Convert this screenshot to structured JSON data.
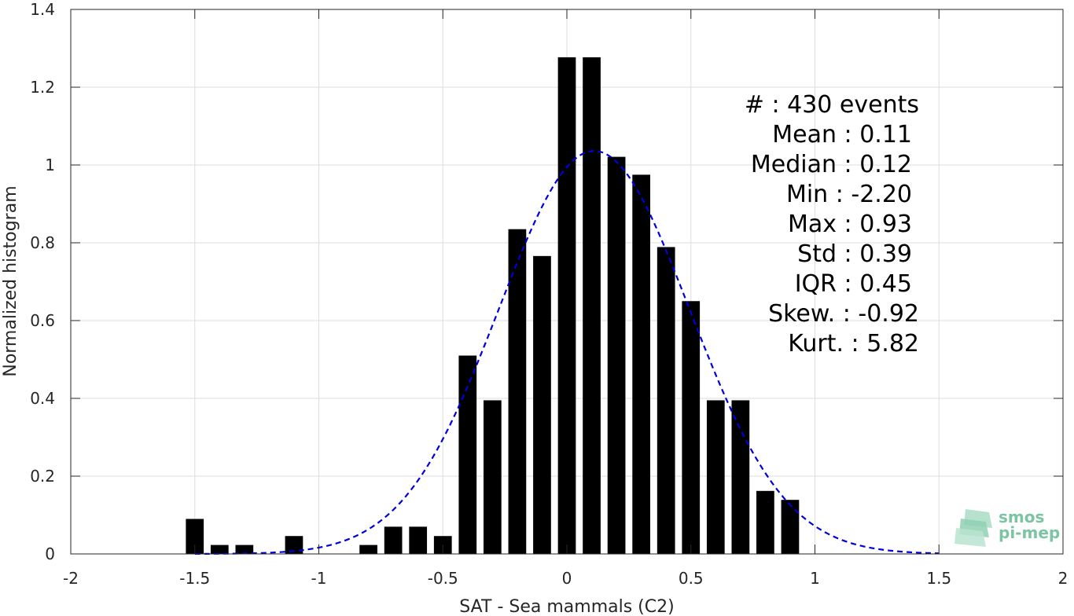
{
  "chart_data": {
    "type": "bar",
    "title": "",
    "xlabel": "SAT - Sea mammals (C2)",
    "ylabel": "Normalized histogram",
    "xlim": [
      -2,
      2
    ],
    "ylim": [
      0,
      1.4
    ],
    "grid": true,
    "x_ticks": [
      "-2",
      "-1.5",
      "-1",
      "-0.5",
      "0",
      "0.5",
      "1",
      "1.5",
      "2"
    ],
    "y_ticks": [
      "0",
      "0.2",
      "0.4",
      "0.6",
      "0.8",
      "1",
      "1.2",
      "1.4"
    ],
    "bin_centers": [
      -1.5,
      -1.4,
      -1.3,
      -1.1,
      -0.8,
      -0.7,
      -0.6,
      -0.5,
      -0.4,
      -0.3,
      -0.2,
      -0.1,
      0.0,
      0.1,
      0.2,
      0.3,
      0.4,
      0.5,
      0.6,
      0.7,
      0.8,
      0.9
    ],
    "values": [
      0.09,
      0.023,
      0.023,
      0.046,
      0.023,
      0.07,
      0.07,
      0.046,
      0.51,
      0.395,
      0.835,
      0.766,
      1.277,
      1.277,
      1.021,
      0.975,
      0.789,
      0.65,
      0.395,
      0.395,
      0.162,
      0.139
    ],
    "bar_color": "#000000",
    "fit_curve": {
      "type": "normal",
      "mean": 0.11,
      "std": 0.385,
      "x_range": [
        -1.5,
        1.5
      ],
      "color": "#0000dd",
      "style": "dashed"
    },
    "stats_text": [
      "#  : 430 events",
      "Mean : 0.11",
      "Median : 0.12",
      "Min : -2.20",
      "Max : 0.93",
      "Std : 0.39",
      "IQR : 0.45",
      "Skew. : -0.92",
      "Kurt. : 5.82"
    ]
  },
  "logo": {
    "line1": "smos",
    "line2": "pi-mep",
    "color": "#7cc4a2"
  }
}
